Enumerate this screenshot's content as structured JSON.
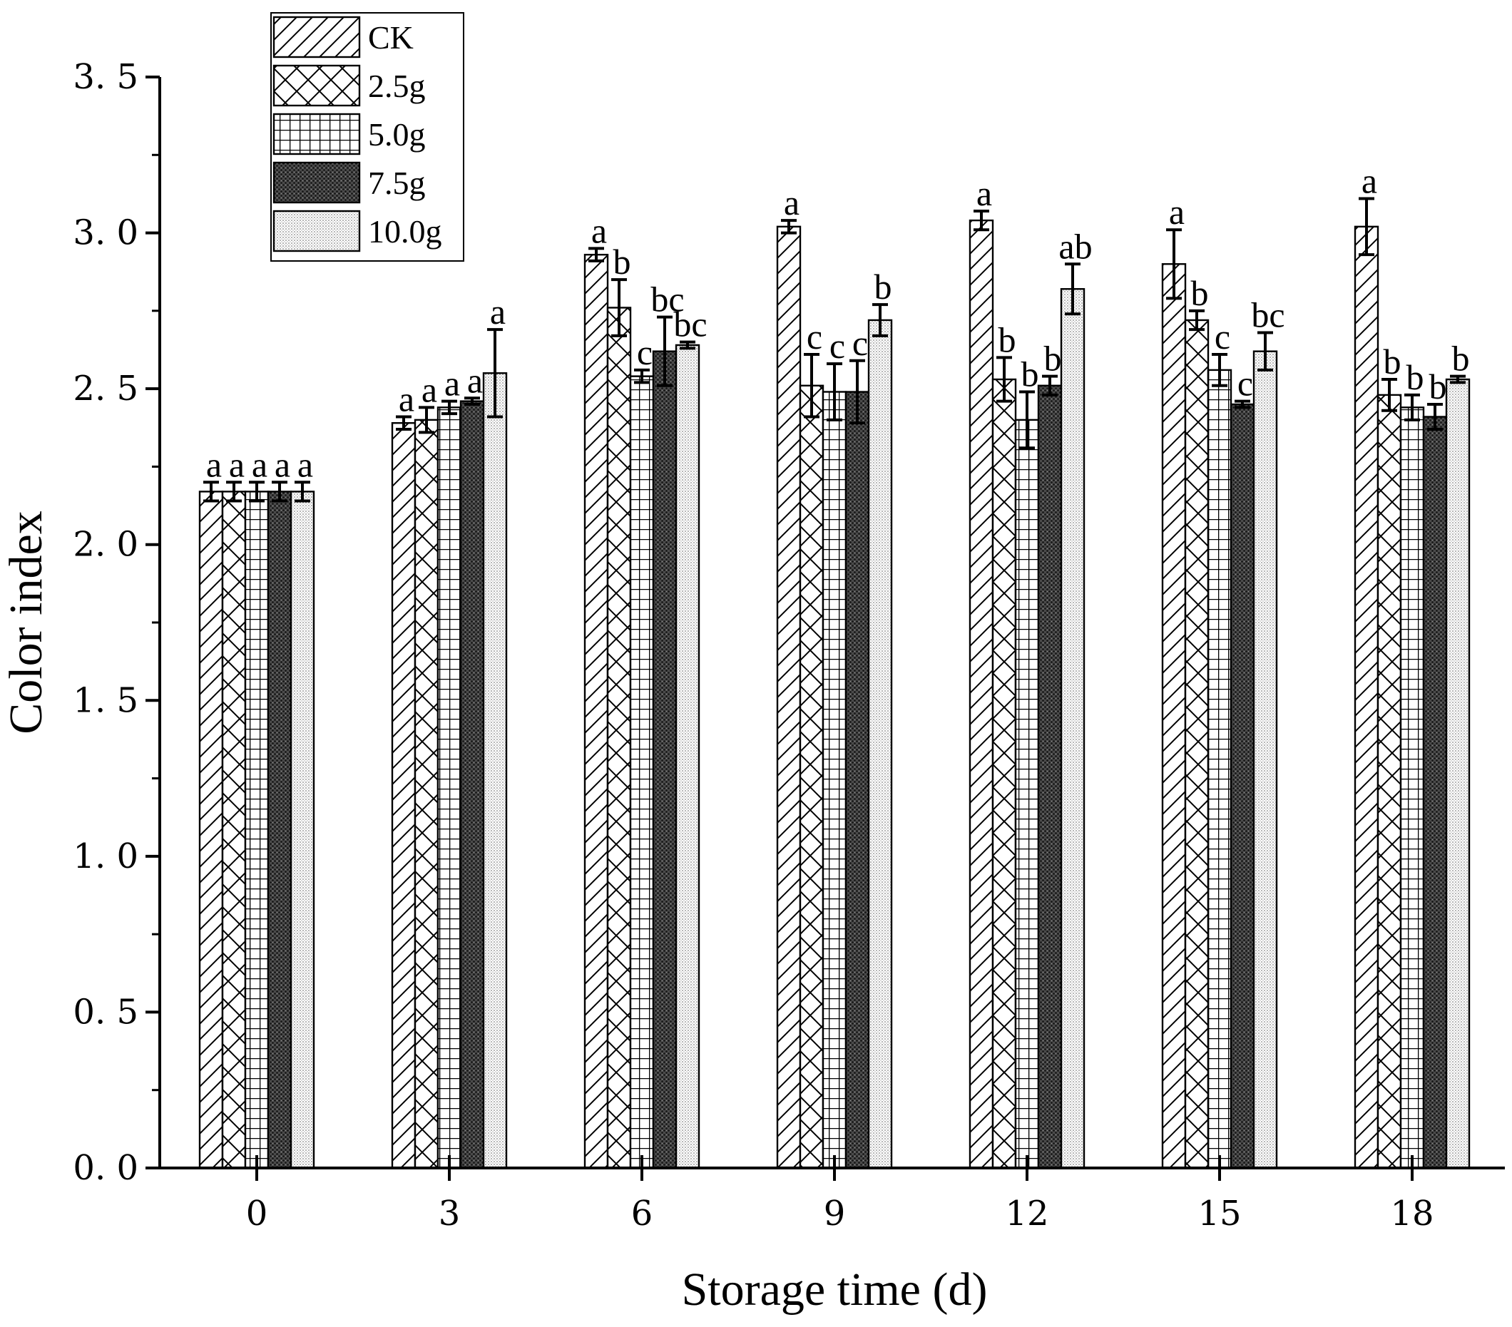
{
  "chart_data": {
    "type": "bar",
    "title": "",
    "xlabel": "Storage time (d)",
    "ylabel": "Color index",
    "ylim": [
      0,
      3.5
    ],
    "yticks": [
      "0. 0",
      "0. 5",
      "1. 0",
      "1. 5",
      "2. 0",
      "2. 5",
      "3. 0",
      "3. 5"
    ],
    "categories": [
      "0",
      "3",
      "6",
      "9",
      "12",
      "15",
      "18"
    ],
    "legend_position": "top-left",
    "series": [
      {
        "name": "CK",
        "pattern": "diagonal-hatch",
        "values": [
          2.17,
          2.39,
          2.93,
          3.02,
          3.04,
          2.9,
          3.02
        ],
        "errors": [
          0.03,
          0.02,
          0.02,
          0.02,
          0.03,
          0.11,
          0.09
        ],
        "letters": [
          "a",
          "a",
          "a",
          "a",
          "a",
          "a",
          "a"
        ]
      },
      {
        "name": "2.5g",
        "pattern": "cross-hatch",
        "values": [
          2.17,
          2.4,
          2.76,
          2.51,
          2.53,
          2.72,
          2.48
        ],
        "errors": [
          0.03,
          0.04,
          0.09,
          0.1,
          0.07,
          0.03,
          0.05
        ],
        "letters": [
          "a",
          "a",
          "b",
          "c",
          "b",
          "b",
          "b"
        ]
      },
      {
        "name": "5.0g",
        "pattern": "grid",
        "values": [
          2.17,
          2.44,
          2.54,
          2.49,
          2.4,
          2.56,
          2.44
        ],
        "errors": [
          0.03,
          0.02,
          0.02,
          0.09,
          0.09,
          0.05,
          0.04
        ],
        "letters": [
          "a",
          "a",
          "c",
          "c",
          "b",
          "c",
          "b"
        ]
      },
      {
        "name": "7.5g",
        "pattern": "dense-dots",
        "values": [
          2.17,
          2.46,
          2.62,
          2.49,
          2.51,
          2.45,
          2.41
        ],
        "errors": [
          0.03,
          0.01,
          0.11,
          0.1,
          0.03,
          0.01,
          0.04
        ],
        "letters": [
          "a",
          "a",
          "bc",
          "c",
          "b",
          "c",
          "b"
        ]
      },
      {
        "name": "10.0g",
        "pattern": "fine-dots",
        "values": [
          2.17,
          2.55,
          2.64,
          2.72,
          2.82,
          2.62,
          2.53
        ],
        "errors": [
          0.03,
          0.14,
          0.01,
          0.05,
          0.08,
          0.06,
          0.01
        ],
        "letters": [
          "a",
          "a",
          "bc",
          "b",
          "ab",
          "bc",
          "b"
        ]
      }
    ]
  }
}
